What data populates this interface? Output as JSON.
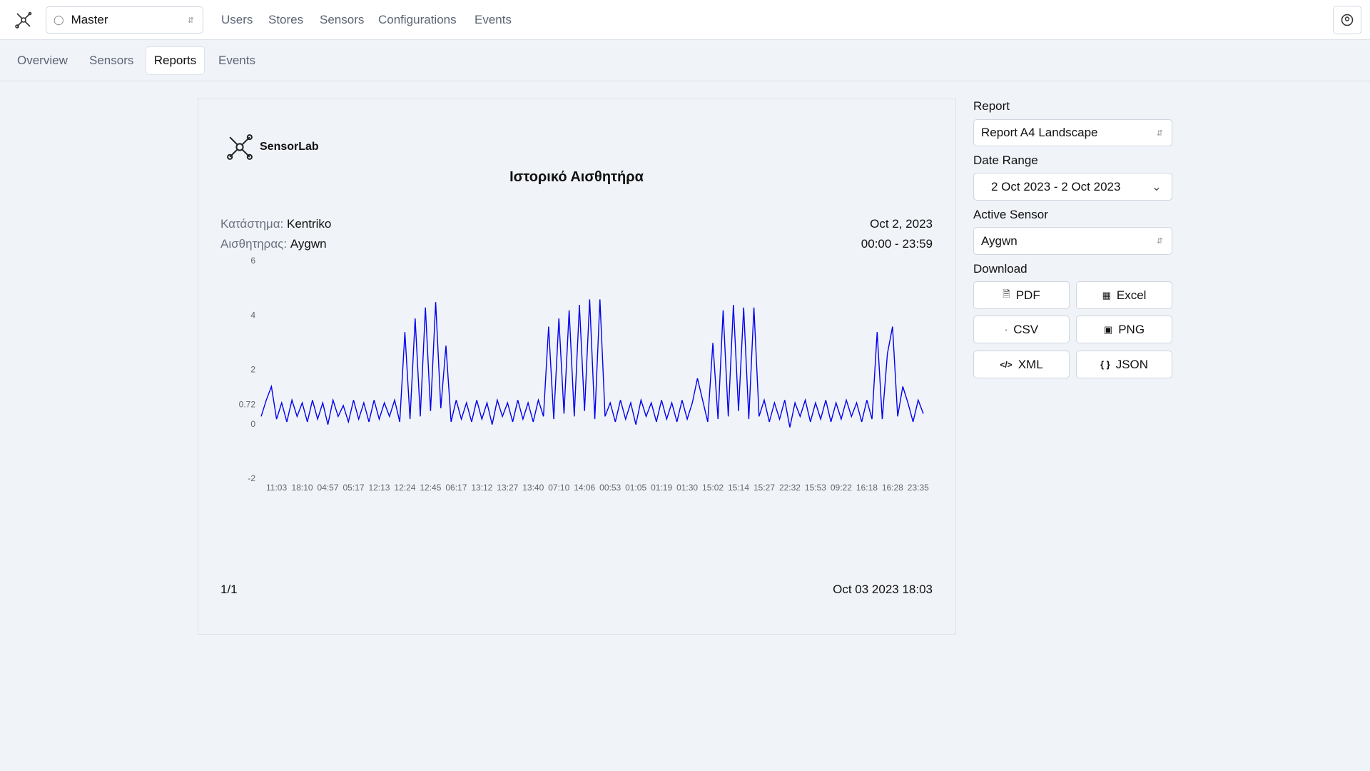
{
  "header": {
    "account": "Master",
    "nav": [
      "Users",
      "Stores",
      "Sensors",
      "Configurations",
      "Events"
    ]
  },
  "tabs": [
    "Overview",
    "Sensors",
    "Reports",
    "Events"
  ],
  "report": {
    "brand": "SensorLab",
    "title": "Ιστορικό Αισθητήρα",
    "store_label": "Κατάστημα:",
    "store": "Kentriko",
    "sensor_label": "Αισθητηρας:",
    "sensor": "Aygwn",
    "date": "Oct 2, 2023",
    "time_range": "00:00 - 23:59",
    "page": "1/1",
    "generated": "Oct 03 2023 18:03"
  },
  "sidebar": {
    "report_label": "Report",
    "report_value": "Report A4 Landscape",
    "date_range_label": "Date Range",
    "date_range_value": "2 Oct 2023 - 2 Oct 2023",
    "sensor_label": "Active Sensor",
    "sensor_value": "Aygwn",
    "download_label": "Download",
    "downloads": [
      "PDF",
      "Excel",
      "CSV",
      "PNG",
      "XML",
      "JSON"
    ]
  },
  "chart_data": {
    "type": "line",
    "categories": [
      null,
      null,
      null,
      "11:03",
      null,
      null,
      null,
      null,
      "18:10",
      null,
      null,
      null,
      null,
      "04:57",
      null,
      null,
      null,
      null,
      "05:17",
      null,
      null,
      null,
      null,
      "12:13",
      null,
      null,
      null,
      null,
      "12:24",
      null,
      null,
      null,
      null,
      "12:45",
      null,
      null,
      null,
      null,
      "06:17",
      null,
      null,
      null,
      null,
      "13:12",
      null,
      null,
      null,
      null,
      "13:27",
      null,
      null,
      null,
      null,
      "13:40",
      null,
      null,
      null,
      null,
      "07:10",
      null,
      null,
      null,
      null,
      "14:06",
      null,
      null,
      null,
      null,
      "00:53",
      null,
      null,
      null,
      null,
      "01:05",
      null,
      null,
      null,
      null,
      "01:19",
      null,
      null,
      null,
      null,
      "01:30",
      null,
      null,
      null,
      null,
      "15:02",
      null,
      null,
      null,
      null,
      "15:14",
      null,
      null,
      null,
      null,
      "15:27",
      null,
      null,
      null,
      null,
      "22:32",
      null,
      null,
      null,
      null,
      "15:53",
      null,
      null,
      null,
      null,
      "09:22",
      null,
      null,
      null,
      null,
      "16:18",
      null,
      null,
      null,
      null,
      "16:28",
      null,
      null,
      null,
      null,
      "23:35",
      null
    ],
    "values": [
      0.3,
      0.9,
      1.4,
      0.2,
      0.8,
      0.1,
      0.9,
      0.3,
      0.8,
      0.1,
      0.9,
      0.2,
      0.8,
      0.0,
      0.9,
      0.3,
      0.7,
      0.1,
      0.9,
      0.2,
      0.8,
      0.1,
      0.9,
      0.2,
      0.8,
      0.3,
      0.9,
      0.1,
      3.4,
      0.2,
      3.9,
      0.3,
      4.3,
      0.5,
      4.5,
      0.6,
      2.9,
      0.1,
      0.9,
      0.2,
      0.8,
      0.1,
      0.9,
      0.2,
      0.8,
      0.0,
      0.9,
      0.3,
      0.8,
      0.1,
      0.9,
      0.2,
      0.8,
      0.1,
      0.9,
      0.3,
      3.6,
      0.2,
      3.9,
      0.4,
      4.2,
      0.3,
      4.4,
      0.5,
      4.6,
      0.2,
      4.6,
      0.3,
      0.8,
      0.1,
      0.9,
      0.2,
      0.8,
      0.0,
      0.9,
      0.3,
      0.8,
      0.1,
      0.9,
      0.2,
      0.8,
      0.1,
      0.9,
      0.2,
      0.8,
      1.7,
      0.9,
      0.1,
      3.0,
      0.2,
      4.2,
      0.3,
      4.4,
      0.5,
      4.3,
      0.2,
      4.3,
      0.3,
      0.9,
      0.1,
      0.8,
      0.2,
      0.9,
      -0.1,
      0.8,
      0.3,
      0.9,
      0.1,
      0.8,
      0.2,
      0.9,
      0.1,
      0.8,
      0.2,
      0.9,
      0.3,
      0.8,
      0.1,
      0.9,
      0.2,
      3.4,
      0.2,
      2.6,
      3.6,
      0.3,
      1.4,
      0.8,
      0.1,
      0.9,
      0.4
    ],
    "color": "#0000ee",
    "ylim": [
      -2,
      6
    ],
    "yticks": [
      -2,
      0,
      0.72,
      2,
      4,
      6
    ]
  }
}
